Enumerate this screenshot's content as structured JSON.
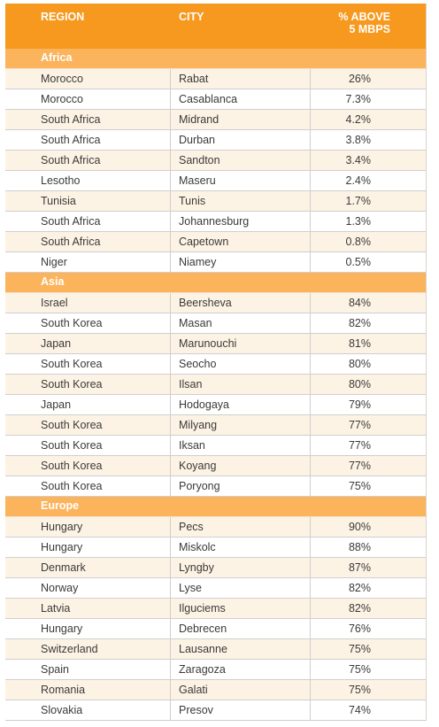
{
  "header": {
    "region": "REGION",
    "city": "CITY",
    "pct_line1": "% ABOVE",
    "pct_line2": "5 MBPS"
  },
  "sections": [
    {
      "name": "Africa",
      "rows": [
        [
          "Morocco",
          "Rabat",
          "26%"
        ],
        [
          "Morocco",
          "Casablanca",
          "7.3%"
        ],
        [
          "South Africa",
          "Midrand",
          "4.2%"
        ],
        [
          "South Africa",
          "Durban",
          "3.8%"
        ],
        [
          "South Africa",
          "Sandton",
          "3.4%"
        ],
        [
          "Lesotho",
          "Maseru",
          "2.4%"
        ],
        [
          "Tunisia",
          "Tunis",
          "1.7%"
        ],
        [
          "South Africa",
          "Johannesburg",
          "1.3%"
        ],
        [
          "South Africa",
          "Capetown",
          "0.8%"
        ],
        [
          "Niger",
          "Niamey",
          "0.5%"
        ]
      ]
    },
    {
      "name": "Asia",
      "rows": [
        [
          "Israel",
          "Beersheva",
          "84%"
        ],
        [
          "South Korea",
          "Masan",
          "82%"
        ],
        [
          "Japan",
          "Marunouchi",
          "81%"
        ],
        [
          "South Korea",
          "Seocho",
          "80%"
        ],
        [
          "South Korea",
          "Ilsan",
          "80%"
        ],
        [
          "Japan",
          "Hodogaya",
          "79%"
        ],
        [
          "South Korea",
          "Milyang",
          "77%"
        ],
        [
          "South Korea",
          "Iksan",
          "77%"
        ],
        [
          "South Korea",
          "Koyang",
          "77%"
        ],
        [
          "South Korea",
          "Poryong",
          "75%"
        ]
      ]
    },
    {
      "name": "Europe",
      "rows": [
        [
          "Hungary",
          "Pecs",
          "90%"
        ],
        [
          "Hungary",
          "Miskolc",
          "88%"
        ],
        [
          "Denmark",
          "Lyngby",
          "87%"
        ],
        [
          "Norway",
          "Lyse",
          "82%"
        ],
        [
          "Latvia",
          "Ilguciems",
          "82%"
        ],
        [
          "Hungary",
          "Debrecen",
          "76%"
        ],
        [
          "Switzerland",
          "Lausanne",
          "75%"
        ],
        [
          "Spain",
          "Zaragoza",
          "75%"
        ],
        [
          "Romania",
          "Galati",
          "75%"
        ],
        [
          "Slovakia",
          "Presov",
          "74%"
        ]
      ]
    }
  ],
  "colors": {
    "header_bg": "#f6991e",
    "section_bg": "#fbb35c",
    "row_alt_bg": "#fdf3e4"
  }
}
